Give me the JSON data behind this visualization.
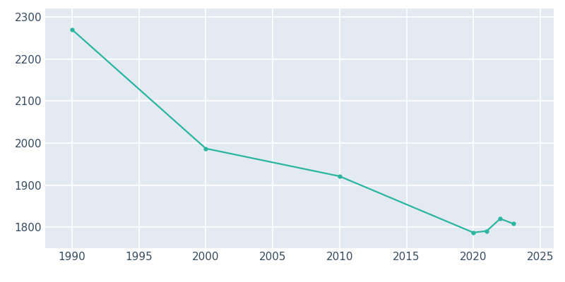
{
  "years": [
    1990,
    2000,
    2010,
    2020,
    2021,
    2022,
    2023
  ],
  "population": [
    2270,
    1987,
    1921,
    1787,
    1791,
    1820,
    1808
  ],
  "line_color": "#2BB5A0",
  "plot_bg_color": "#E4EAF2",
  "fig_bg_color": "#FFFFFF",
  "grid_color": "#FFFFFF",
  "text_color": "#364B60",
  "xlim": [
    1988,
    2026
  ],
  "ylim": [
    1750,
    2320
  ],
  "xticks": [
    1990,
    1995,
    2000,
    2005,
    2010,
    2015,
    2020,
    2025
  ],
  "yticks": [
    1800,
    1900,
    2000,
    2100,
    2200,
    2300
  ],
  "linewidth": 1.6,
  "markersize": 3.5,
  "tick_labelsize": 11
}
